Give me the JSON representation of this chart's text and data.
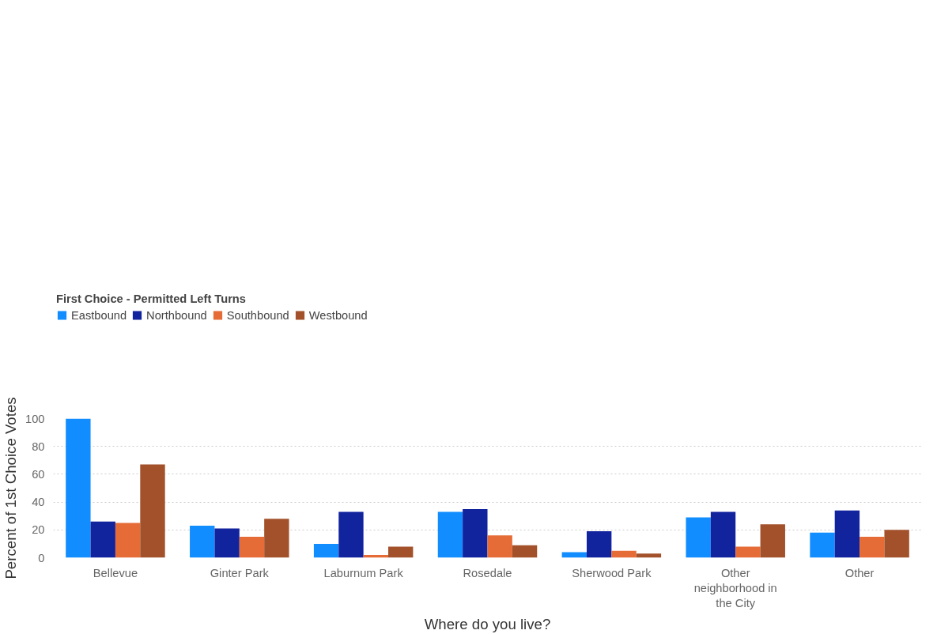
{
  "chart_data": {
    "type": "bar",
    "legend_title": "First Choice - Permitted Left Turns",
    "xlabel": "Where do you live?",
    "ylabel": "Percent of 1st Choice Votes",
    "categories": [
      "Bellevue",
      "Ginter Park",
      "Laburnum Park",
      "Rosedale",
      "Sherwood Park",
      "Other neighborhood in the City",
      "Other"
    ],
    "series": [
      {
        "name": "Eastbound",
        "color": "#118dff",
        "values": [
          100,
          23,
          10,
          33,
          4,
          29,
          18
        ]
      },
      {
        "name": "Northbound",
        "color": "#12239e",
        "values": [
          26,
          21,
          33,
          35,
          19,
          33,
          34
        ]
      },
      {
        "name": "Southbound",
        "color": "#e66c37",
        "values": [
          25,
          15,
          2,
          16,
          5,
          8,
          15
        ]
      },
      {
        "name": "Westbound",
        "color": "#a3512b",
        "values": [
          67,
          28,
          8,
          9,
          3,
          24,
          20
        ]
      }
    ],
    "ylim": [
      0,
      100
    ],
    "yticks": [
      0,
      20,
      40,
      60,
      80,
      100
    ],
    "grid": "y",
    "legend": "top left"
  }
}
